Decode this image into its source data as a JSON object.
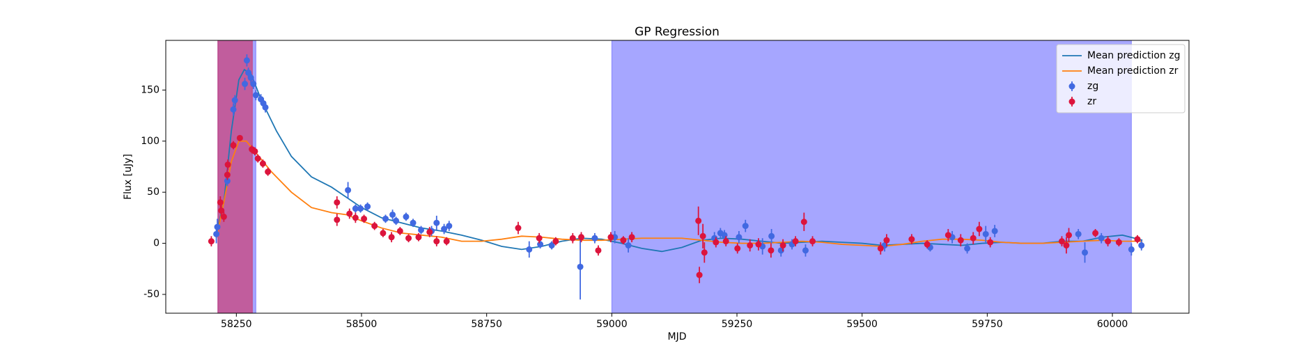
{
  "chart_data": {
    "type": "line",
    "title": "GP Regression",
    "x_label": "MJD",
    "y_label": "Flux [uJy]",
    "xlim": [
      58109,
      60153
    ],
    "ylim": [
      -68.4,
      198.6
    ],
    "xticks": [
      58250,
      58500,
      58750,
      59000,
      59250,
      59500,
      59750,
      60000
    ],
    "yticks": [
      -50,
      0,
      50,
      100,
      150
    ],
    "legend": "upper right",
    "shaded_regions": [
      {
        "xlim": [
          58213,
          58289
        ],
        "color": "#0000ff",
        "alpha": 0.35
      },
      {
        "xlim": [
          58213,
          58282
        ],
        "color": "#dc143c",
        "alpha": 0.5
      },
      {
        "xlim": [
          59000,
          60038
        ],
        "color": "#0000ff",
        "alpha": 0.35
      }
    ],
    "series": [
      {
        "name": "Mean prediction zg",
        "kind": "line",
        "color": "#1f77b4",
        "x": [
          58210,
          58225,
          58240,
          58255,
          58266,
          58280,
          58300,
          58330,
          58360,
          58400,
          58440,
          58470,
          58500,
          58540,
          58580,
          58620,
          58660,
          58700,
          58740,
          58780,
          58820,
          58860,
          58900,
          58940,
          58980,
          59020,
          59060,
          59100,
          59140,
          59180,
          59220,
          59260,
          59300,
          59340,
          59380,
          59420,
          59460,
          59500,
          59540,
          59580,
          59620,
          59660,
          59700,
          59740,
          59780,
          59820,
          59860,
          59900,
          59940,
          59980,
          60020,
          60060
        ],
        "values": [
          10,
          40,
          110,
          160,
          170,
          165,
          140,
          110,
          85,
          65,
          55,
          45,
          35,
          25,
          20,
          15,
          12,
          8,
          3,
          -3,
          -6,
          -3,
          2,
          5,
          4,
          0,
          -5,
          -8,
          -4,
          3,
          5,
          4,
          2,
          0,
          1,
          2,
          1,
          0,
          -2,
          -1,
          0,
          -1,
          -2,
          0,
          1,
          0,
          0,
          2,
          2,
          6,
          8,
          3
        ]
      },
      {
        "name": "Mean prediction zr",
        "kind": "line",
        "color": "#ff7f0e",
        "x": [
          58210,
          58225,
          58240,
          58255,
          58270,
          58290,
          58320,
          58360,
          58400,
          58440,
          58470,
          58500,
          58540,
          58580,
          58620,
          58660,
          58700,
          58740,
          58780,
          58820,
          58860,
          58900,
          58940,
          58980,
          59020,
          59060,
          59100,
          59140,
          59180,
          59220,
          59260,
          59300,
          59340,
          59380,
          59420,
          59460,
          59500,
          59540,
          59580,
          59620,
          59660,
          59700,
          59740,
          59780,
          59820,
          59860,
          59900,
          59940,
          59980,
          60020,
          60060
        ],
        "values": [
          5,
          40,
          80,
          100,
          100,
          88,
          70,
          50,
          35,
          30,
          28,
          22,
          15,
          10,
          8,
          6,
          2,
          2,
          4,
          7,
          6,
          4,
          3,
          3,
          4,
          5,
          5,
          5,
          3,
          1,
          0,
          0,
          1,
          2,
          1,
          -1,
          -2,
          -3,
          -1,
          2,
          4,
          4,
          3,
          1,
          0,
          0,
          1,
          2,
          3,
          2,
          2
        ]
      },
      {
        "name": "zg",
        "kind": "errorbar",
        "color": "#4169e1",
        "x": [
          58210,
          58212,
          58232,
          58244,
          58247,
          58267,
          58271,
          58274,
          58279,
          58284,
          58289,
          58299,
          58304,
          58308,
          58473,
          58488,
          58498,
          58512,
          58548,
          58562,
          58569,
          58589,
          58603,
          58619,
          58640,
          58650,
          58665,
          58675,
          58835,
          58857,
          58880,
          58937,
          58966,
          59006,
          59033,
          59205,
          59217,
          59225,
          59254,
          59267,
          59301,
          59319,
          59338,
          59360,
          59387,
          59545,
          59636,
          59680,
          59710,
          59747,
          59765,
          59932,
          59945,
          59978,
          60038,
          60058
        ],
        "values": [
          9,
          16,
          61,
          131,
          140,
          156,
          179,
          167,
          162,
          156,
          145,
          141,
          137,
          133,
          52,
          34,
          34,
          36,
          24,
          28,
          22,
          26,
          20,
          13,
          12,
          20,
          14,
          17,
          -6,
          -1,
          -2,
          -23,
          5,
          6,
          -2,
          5,
          10,
          8,
          6,
          17,
          -3,
          7,
          -7,
          -1,
          -7,
          -2,
          -4,
          6,
          -5,
          9,
          12,
          9,
          -9,
          5,
          -6,
          -2
        ],
        "errors": [
          9,
          8,
          5,
          6,
          5,
          6,
          6,
          5,
          5,
          5,
          5,
          5,
          5,
          5,
          8,
          4,
          4,
          4,
          4,
          5,
          4,
          4,
          4,
          4,
          5,
          7,
          5,
          5,
          8,
          4,
          4,
          32,
          5,
          6,
          7,
          6,
          5,
          5,
          6,
          6,
          8,
          7,
          6,
          5,
          6,
          6,
          4,
          6,
          5,
          8,
          6,
          5,
          10,
          5,
          6,
          5
        ]
      },
      {
        "name": "zr",
        "kind": "errorbar",
        "color": "#dc143c",
        "x": [
          58200,
          58218,
          58220,
          58225,
          58232,
          58233,
          58244,
          58257,
          58281,
          58287,
          58293,
          58303,
          58313,
          58451,
          58451,
          58476,
          58488,
          58505,
          58526,
          58543,
          58560,
          58577,
          58594,
          58614,
          58636,
          58650,
          58670,
          58813,
          58855,
          58888,
          58922,
          58939,
          58973,
          58998,
          59023,
          59040,
          59173,
          59175,
          59182,
          59185,
          59208,
          59228,
          59251,
          59276,
          59293,
          59318,
          59342,
          59367,
          59384,
          59401,
          59537,
          59549,
          59599,
          59630,
          59672,
          59697,
          59722,
          59734,
          59756,
          59899,
          59908,
          59913,
          59966,
          59991,
          60013,
          60050
        ],
        "values": [
          2,
          40,
          32,
          26,
          67,
          77,
          96,
          103,
          92,
          90,
          83,
          78,
          70,
          40,
          23,
          29,
          25,
          24,
          17,
          10,
          6,
          12,
          5,
          6,
          11,
          2,
          2,
          15,
          5,
          2,
          5,
          6,
          -7,
          6,
          3,
          6,
          22,
          -31,
          7,
          -9,
          1,
          2,
          -5,
          -2,
          -1,
          -7,
          -2,
          2,
          21,
          2,
          -5,
          3,
          4,
          -1,
          8,
          3,
          5,
          14,
          1,
          2,
          -2,
          8,
          10,
          2,
          1,
          4
        ],
        "errors": [
          5,
          6,
          6,
          5,
          5,
          5,
          4,
          3,
          4,
          4,
          4,
          4,
          4,
          6,
          6,
          5,
          5,
          4,
          4,
          4,
          5,
          4,
          4,
          4,
          5,
          5,
          4,
          6,
          5,
          4,
          5,
          5,
          5,
          5,
          4,
          5,
          14,
          8,
          12,
          10,
          5,
          5,
          5,
          6,
          6,
          7,
          6,
          5,
          9,
          5,
          6,
          6,
          5,
          4,
          6,
          6,
          6,
          7,
          5,
          5,
          8,
          7,
          4,
          5,
          4,
          4
        ]
      }
    ]
  }
}
